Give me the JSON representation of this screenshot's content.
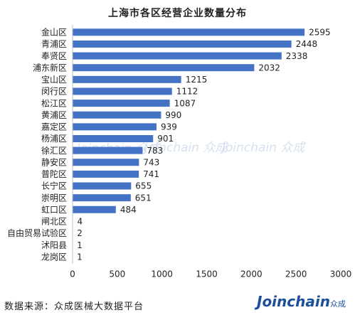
{
  "chart_data": {
    "type": "bar",
    "orientation": "horizontal",
    "title": "上海市各区经营企业数量分布",
    "categories": [
      "金山区",
      "青浦区",
      "奉贤区",
      "浦东新区",
      "宝山区",
      "闵行区",
      "松江区",
      "黄浦区",
      "嘉定区",
      "杨浦区",
      "徐汇区",
      "静安区",
      "普陀区",
      "长宁区",
      "崇明区",
      "虹口区",
      "闸北区",
      "自由贸易试验区",
      "沭阳县",
      "龙岗区"
    ],
    "values": [
      2595,
      2448,
      2338,
      2032,
      1215,
      1112,
      1087,
      990,
      939,
      901,
      783,
      743,
      741,
      655,
      651,
      484,
      4,
      2,
      1,
      1
    ],
    "xlim": [
      0,
      3000
    ],
    "xticks": [
      0,
      500,
      1000,
      1500,
      2000,
      2500,
      3000
    ],
    "xlabel": "",
    "ylabel": "",
    "grid": false,
    "legend": false,
    "bar_color": "#4472c4"
  },
  "watermark_text": "Joinchain 众成",
  "footer": {
    "source": "数据来源：众成医械大数据平台",
    "brand": "Joinchain",
    "brand_suffix": "众成"
  }
}
